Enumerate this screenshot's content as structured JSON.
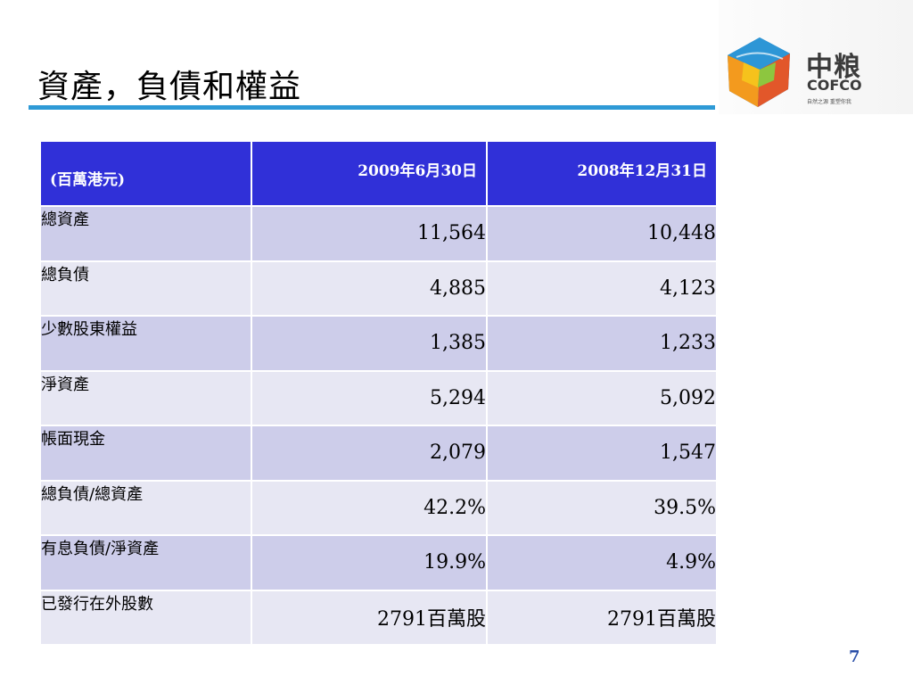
{
  "slide": {
    "title": "資產，負債和權益",
    "page_number": "7"
  },
  "logo": {
    "cn": "中粮",
    "en": "COFCO",
    "tagline": "自然之源 重塑你我"
  },
  "table": {
    "headers": [
      "(百萬港元)",
      "2009年6月30日",
      "2008年12月31日"
    ],
    "rows": [
      {
        "label": "總資產",
        "v2009": "11,564",
        "v2008": "10,448"
      },
      {
        "label": "總負債",
        "v2009": "4,885",
        "v2008": "4,123"
      },
      {
        "label": "少數股東權益",
        "v2009": "1,385",
        "v2008": "1,233"
      },
      {
        "label": "淨資產",
        "v2009": "5,294",
        "v2008": "5,092"
      },
      {
        "label": "帳面現金",
        "v2009": "2,079",
        "v2008": "1,547"
      },
      {
        "label": "總負債/總資產",
        "v2009": "42.2%",
        "v2008": "39.5%"
      },
      {
        "label": "有息負債/淨資產",
        "v2009": "19.9%",
        "v2008": "4.9%"
      },
      {
        "label": "已發行在外股數",
        "v2009": "2791百萬股",
        "v2008": "2791百萬股"
      }
    ]
  },
  "colors": {
    "header_bg": "#3030d8",
    "row_dark": "#cdcdea",
    "row_light": "#e7e7f3",
    "title_rule": "#2e9ad6",
    "page_number": "#2a4fa8"
  }
}
